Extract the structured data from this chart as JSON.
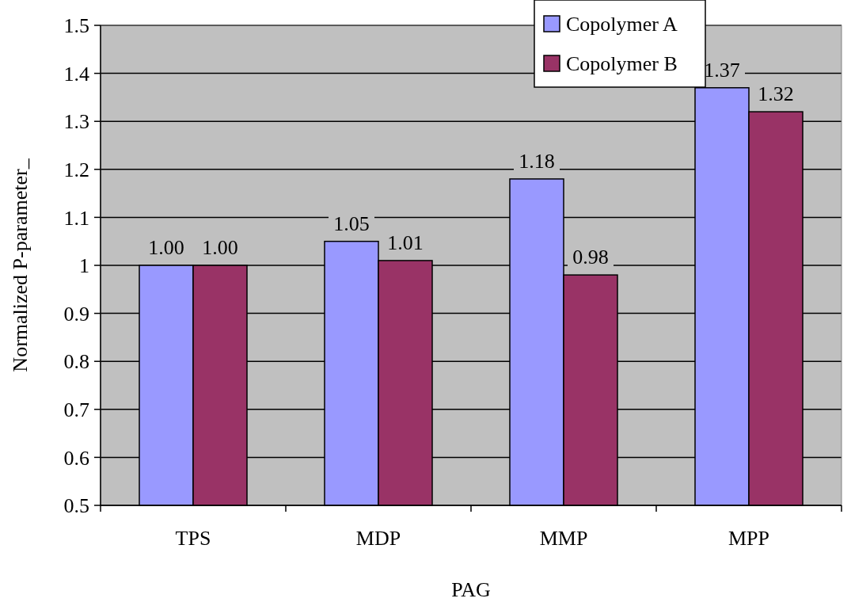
{
  "chart_data": {
    "type": "bar",
    "xlabel": "PAG",
    "ylabel": "Normalized P-parameter_",
    "categories": [
      "TPS",
      "MDP",
      "MMP",
      "MPP"
    ],
    "series": [
      {
        "name": "Copolymer A",
        "color": "#9999ff",
        "values": [
          1.0,
          1.05,
          1.18,
          1.37
        ],
        "value_labels": [
          "1.00",
          "1.05",
          "1.18",
          "1.37"
        ]
      },
      {
        "name": "Copolymer B",
        "color": "#993366",
        "values": [
          1.0,
          1.01,
          0.98,
          1.32
        ],
        "value_labels": [
          "1.00",
          "1.01",
          "0.98",
          "1.32"
        ]
      }
    ],
    "ylim": [
      0.5,
      1.5
    ],
    "yticks": [
      0.5,
      0.6,
      0.7,
      0.8,
      0.9,
      1,
      1.1,
      1.2,
      1.3,
      1.4,
      1.5
    ],
    "grid": "y",
    "legend": "top right"
  }
}
